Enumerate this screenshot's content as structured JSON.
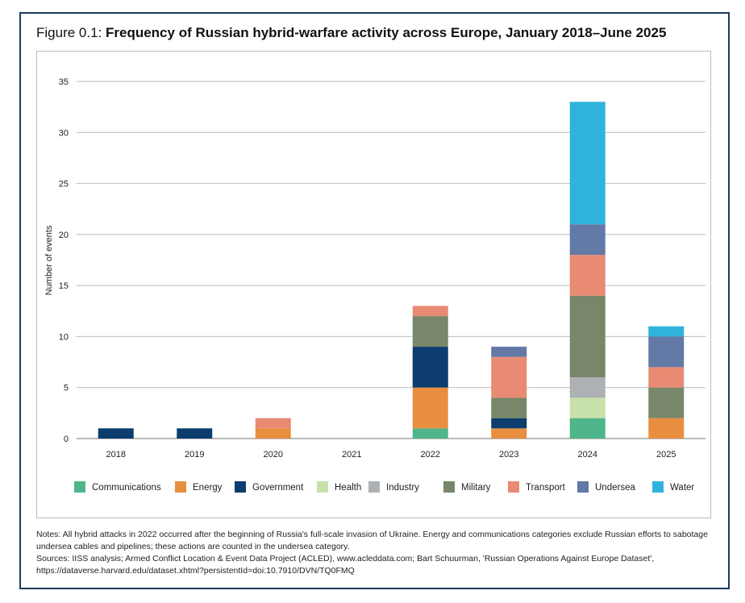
{
  "figure": {
    "label": "Figure 0.1:",
    "title": "Frequency of Russian hybrid-warfare activity across Europe, January 2018–June 2025"
  },
  "notes": {
    "notes": "Notes: All hybrid attacks in 2022 occurred after the beginning of Russia's full-scale invasion of Ukraine. Energy and communications categories exclude Russian efforts to sabotage undersea cables and pipelines; these actions are counted in the undersea category.",
    "sources": "Sources: IISS analysis; Armed Conflict Location & Event Data Project (ACLED), www.acleddata.com; Bart Schuurman, 'Russian Operations Against Europe Dataset', https://dataverse.harvard.edu/dataset.xhtml?persistentId=doi:10.7910/DVN/TQ0FMQ"
  },
  "chart_data": {
    "type": "bar",
    "stacked": true,
    "title": "Frequency of Russian hybrid-warfare activity across Europe, January 2018–June 2025",
    "xlabel": "",
    "ylabel": "Number of events",
    "ylim": [
      0,
      35
    ],
    "yticks": [
      0,
      5,
      10,
      15,
      20,
      25,
      30,
      35
    ],
    "grid": true,
    "legend_position": "bottom",
    "categories": [
      "2018",
      "2019",
      "2020",
      "2021",
      "2022",
      "2023",
      "2024",
      "2025"
    ],
    "series": [
      {
        "name": "Communications",
        "color": "#4fb58a",
        "values": [
          0,
          0,
          0,
          0,
          1,
          0,
          2,
          0
        ]
      },
      {
        "name": "Energy",
        "color": "#e88f3f",
        "values": [
          0,
          0,
          1,
          0,
          4,
          1,
          0,
          2
        ]
      },
      {
        "name": "Government",
        "color": "#0c3d6e",
        "values": [
          1,
          1,
          0,
          0,
          4,
          1,
          0,
          0
        ]
      },
      {
        "name": "Health",
        "color": "#c8e0aa",
        "values": [
          0,
          0,
          0,
          0,
          0,
          0,
          2,
          0
        ]
      },
      {
        "name": "Industry",
        "color": "#adb1b4",
        "values": [
          0,
          0,
          0,
          0,
          0,
          0,
          2,
          0
        ]
      },
      {
        "name": "Military",
        "color": "#788769",
        "values": [
          0,
          0,
          0,
          0,
          3,
          2,
          8,
          3
        ]
      },
      {
        "name": "Transport",
        "color": "#e98a73",
        "values": [
          0,
          0,
          1,
          0,
          1,
          4,
          4,
          2
        ]
      },
      {
        "name": "Undersea",
        "color": "#6379a6",
        "values": [
          0,
          0,
          0,
          0,
          0,
          1,
          3,
          3
        ]
      },
      {
        "name": "Water",
        "color": "#2fb3dc",
        "values": [
          0,
          0,
          0,
          0,
          0,
          0,
          12,
          1
        ]
      }
    ]
  }
}
